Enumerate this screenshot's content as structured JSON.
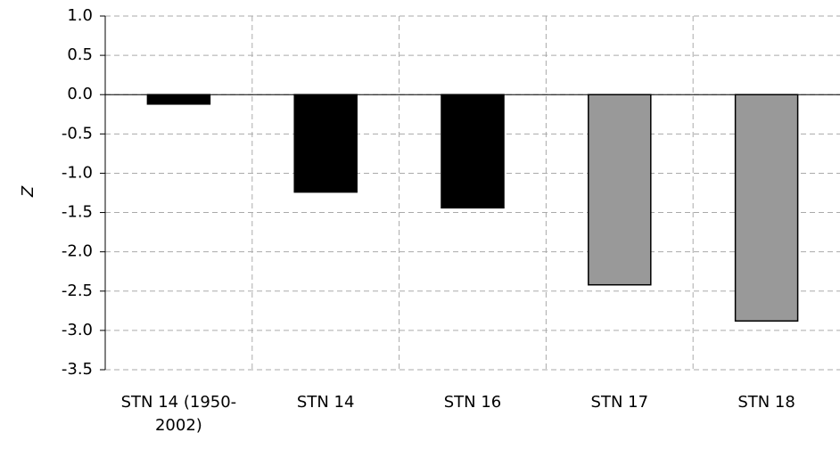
{
  "chart_data": {
    "type": "bar",
    "y_label": "Z",
    "categories": [
      "STN 14 (1950-2002)",
      "STN 14",
      "STN 16",
      "STN 17",
      "STN 18"
    ],
    "values": [
      -0.12,
      -1.24,
      -1.44,
      -2.42,
      -2.88
    ],
    "colors": [
      "#000000",
      "#000000",
      "#000000",
      "#999999",
      "#999999"
    ],
    "ylim": [
      -3.5,
      1.0
    ],
    "yticks": [
      {
        "value": 1,
        "label": "1.0"
      },
      0.5,
      {
        "value": 0,
        "label": "0.0"
      },
      -0.5,
      {
        "value": -1,
        "label": "-1.0"
      },
      -1.5,
      {
        "value": -2,
        "label": "-2.0"
      },
      -2.5,
      {
        "value": -3,
        "label": "-3.0"
      },
      -3.5
    ],
    "grid": true
  }
}
